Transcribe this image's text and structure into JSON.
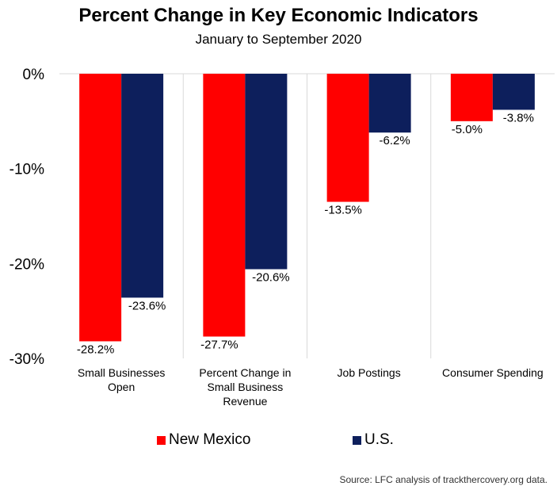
{
  "chart_data": {
    "type": "bar",
    "title": "Percent Change in Key Economic Indicators",
    "subtitle": "January to September 2020",
    "categories": [
      [
        "Small Businesses",
        "Open"
      ],
      [
        "Percent Change in",
        "Small Business",
        "Revenue"
      ],
      [
        "Job Postings"
      ],
      [
        "Consumer Spending"
      ]
    ],
    "series": [
      {
        "name": "New Mexico",
        "color": "#ff0000",
        "values": [
          -28.2,
          -27.7,
          -13.5,
          -5.0
        ],
        "labels": [
          "-28.2%",
          "-27.7%",
          "-13.5%",
          "-5.0%"
        ]
      },
      {
        "name": "U.S.",
        "color": "#0d1f5c",
        "values": [
          -23.6,
          -20.6,
          -6.2,
          -3.8
        ],
        "labels": [
          "-23.6%",
          "-20.6%",
          "-6.2%",
          "-3.8%"
        ]
      }
    ],
    "ylim": [
      -30,
      0
    ],
    "yticks": [
      0,
      -10,
      -20,
      -30
    ],
    "ytick_labels": [
      "0%",
      "-10%",
      "-20%",
      "-30%"
    ],
    "grid": true,
    "legend_position": "bottom",
    "source": "Source: LFC analysis of trackthercovery.org data."
  }
}
